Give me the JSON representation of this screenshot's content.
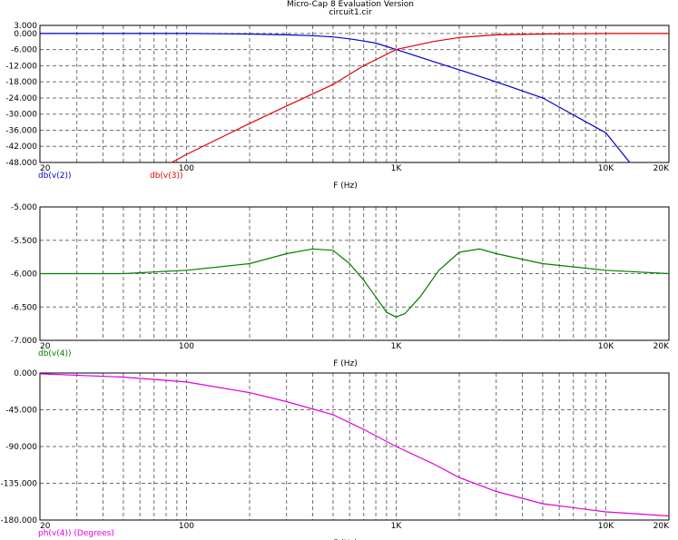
{
  "window": {
    "title": "Micro-Cap 8 Evaluation Version",
    "filename": "circuit1.cir"
  },
  "colors": {
    "background": "#ffffff",
    "grid": "#6e6e6e",
    "axis": "#000000",
    "label_text": "#000000",
    "v2": "#0000c8",
    "v3": "#e00000",
    "v4_db": "#008000",
    "v4_ph": "#e000e0"
  },
  "chart_data": [
    {
      "type": "line",
      "xscale": "log",
      "xlim": [
        20,
        20000
      ],
      "ylim": [
        -48,
        3
      ],
      "xlabel": "F (Hz)",
      "x_ticks": [
        "20",
        "100",
        "1K",
        "10K",
        "20K"
      ],
      "y_ticks": [
        "3.000",
        "0.000",
        "-6.000",
        "-12.000",
        "-18.000",
        "-24.000",
        "-30.000",
        "-36.000",
        "-42.000",
        "-48.000"
      ],
      "series": [
        {
          "name": "db(v(2))",
          "x": [
            20,
            100,
            200,
            300,
            400,
            500,
            600,
            700,
            800,
            1000,
            1500,
            2000,
            3000,
            5000,
            10000,
            13000
          ],
          "y": [
            0,
            0,
            -0.2,
            -0.5,
            -0.8,
            -1.3,
            -2.0,
            -2.8,
            -3.6,
            -6.0,
            -10.4,
            -13.5,
            -18.0,
            -24.0,
            -37.0,
            -48.0
          ]
        },
        {
          "name": "db(v(3))",
          "x": [
            85,
            100,
            200,
            300,
            500,
            700,
            1000,
            1500,
            2000,
            3000,
            5000,
            10000,
            20000
          ],
          "y": [
            -48.0,
            -45.0,
            -33.5,
            -27.0,
            -19.0,
            -12.0,
            -6.0,
            -3.0,
            -1.5,
            -0.5,
            -0.2,
            0,
            0
          ]
        }
      ]
    },
    {
      "type": "line",
      "xscale": "log",
      "xlim": [
        20,
        20000
      ],
      "ylim": [
        -7,
        -5
      ],
      "xlabel": "F (Hz)",
      "x_ticks": [
        "20",
        "100",
        "1K",
        "10K",
        "20K"
      ],
      "y_ticks": [
        "-5.000",
        "-5.500",
        "-6.000",
        "-6.500",
        "-7.000"
      ],
      "series": [
        {
          "name": "db(v(4))",
          "x": [
            20,
            50,
            100,
            200,
            300,
            400,
            500,
            600,
            700,
            800,
            900,
            1000,
            1100,
            1300,
            1600,
            2000,
            2500,
            3000,
            5000,
            10000,
            20000
          ],
          "y": [
            -6.0,
            -6.0,
            -5.95,
            -5.85,
            -5.7,
            -5.63,
            -5.65,
            -5.85,
            -6.1,
            -6.35,
            -6.58,
            -6.65,
            -6.6,
            -6.35,
            -5.95,
            -5.68,
            -5.63,
            -5.7,
            -5.85,
            -5.95,
            -6.0
          ]
        }
      ]
    },
    {
      "type": "line",
      "xscale": "log",
      "xlim": [
        20,
        20000
      ],
      "ylim": [
        -180,
        0
      ],
      "xlabel": "F (Hz)",
      "x_ticks": [
        "20",
        "100",
        "1K",
        "10K",
        "20K"
      ],
      "y_ticks": [
        "0.000",
        "-45.000",
        "-90.000",
        "-135.000",
        "-180.000"
      ],
      "series": [
        {
          "name": "ph(v(4)) (Degrees)",
          "x": [
            20,
            50,
            100,
            200,
            300,
            500,
            700,
            1000,
            1500,
            2000,
            3000,
            5000,
            10000,
            20000
          ],
          "y": [
            -1,
            -5,
            -11,
            -24,
            -35,
            -51,
            -69,
            -90,
            -111,
            -128,
            -145,
            -160,
            -170,
            -175
          ]
        }
      ]
    }
  ]
}
